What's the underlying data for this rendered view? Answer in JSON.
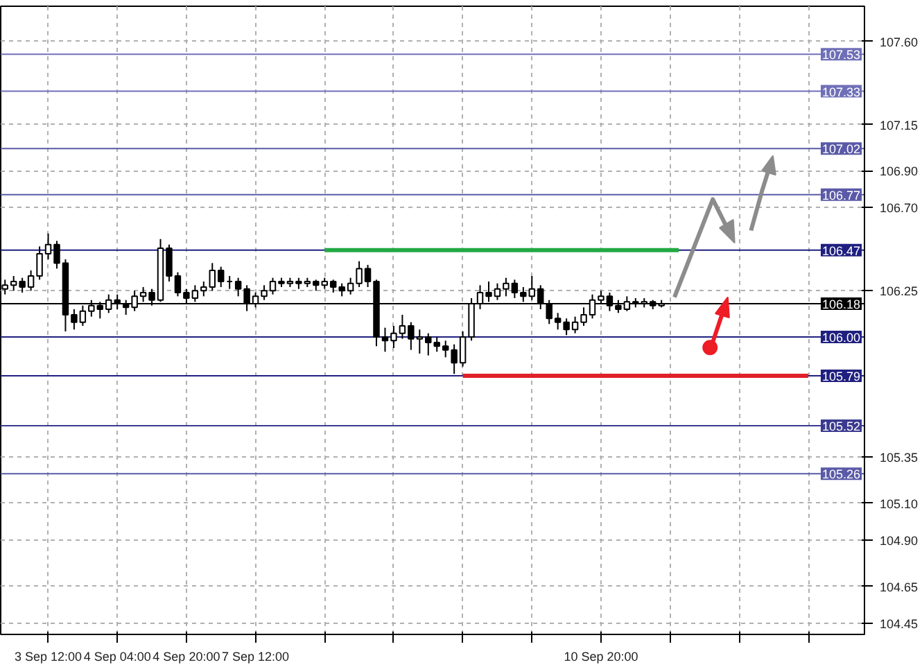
{
  "chart_data": {
    "type": "candlestick",
    "categories": [
      null,
      null,
      null,
      null,
      null,
      "3 Sep 12:00",
      null,
      null,
      null,
      null,
      null,
      null,
      null,
      "4 Sep 04:00",
      null,
      null,
      null,
      null,
      null,
      null,
      null,
      "4 Sep 20:00",
      null,
      null,
      null,
      null,
      null,
      null,
      null,
      "7 Sep 12:00",
      null,
      null,
      null,
      null,
      null,
      null,
      null,
      null,
      null,
      null,
      null,
      null,
      null,
      null,
      null,
      null,
      null,
      null,
      null,
      null,
      null,
      null,
      null,
      null,
      null,
      null,
      null,
      null,
      null,
      null,
      null,
      null,
      null,
      null,
      null,
      null,
      null,
      null,
      null,
      "10 Sep 20:00",
      null,
      null,
      null,
      null,
      null,
      null,
      null,
      null,
      null,
      null,
      null,
      null,
      null,
      null,
      null,
      null,
      null,
      null,
      null,
      null,
      null,
      null,
      null,
      null,
      null,
      null,
      null,
      null,
      null,
      null
    ],
    "ohlc": [
      [
        106.26,
        106.31,
        106.23,
        106.28
      ],
      [
        106.28,
        106.33,
        106.25,
        106.3
      ],
      [
        106.3,
        106.32,
        106.24,
        106.27
      ],
      [
        106.27,
        106.36,
        106.25,
        106.33
      ],
      [
        106.33,
        106.49,
        106.31,
        106.45
      ],
      [
        106.45,
        106.56,
        106.42,
        106.5
      ],
      [
        106.5,
        106.52,
        106.37,
        106.4
      ],
      [
        106.4,
        106.42,
        106.03,
        106.12
      ],
      [
        106.12,
        106.15,
        106.04,
        106.08
      ],
      [
        106.08,
        106.17,
        106.06,
        106.14
      ],
      [
        106.14,
        106.2,
        106.11,
        106.17
      ],
      [
        106.17,
        106.19,
        106.1,
        106.15
      ],
      [
        106.15,
        106.23,
        106.13,
        106.2
      ],
      [
        106.2,
        106.23,
        106.15,
        106.18
      ],
      [
        106.18,
        106.2,
        106.12,
        106.16
      ],
      [
        106.16,
        106.25,
        106.14,
        106.22
      ],
      [
        106.22,
        106.27,
        106.19,
        106.24
      ],
      [
        106.24,
        106.26,
        106.17,
        106.2
      ],
      [
        106.2,
        106.53,
        106.19,
        106.48
      ],
      [
        106.48,
        106.5,
        106.3,
        106.33
      ],
      [
        106.33,
        106.35,
        106.22,
        106.24
      ],
      [
        106.24,
        106.26,
        106.18,
        106.21
      ],
      [
        106.21,
        106.28,
        106.19,
        106.25
      ],
      [
        106.25,
        106.3,
        106.22,
        106.27
      ],
      [
        106.27,
        106.4,
        106.25,
        106.36
      ],
      [
        106.36,
        106.38,
        106.27,
        106.3
      ],
      [
        106.3,
        106.33,
        106.26,
        106.3
      ],
      [
        106.3,
        106.32,
        106.22,
        106.26
      ],
      [
        106.26,
        106.28,
        106.14,
        106.18
      ],
      [
        106.18,
        106.24,
        106.16,
        106.22
      ],
      [
        106.22,
        106.28,
        106.2,
        106.25
      ],
      [
        106.25,
        106.32,
        106.23,
        106.3
      ],
      [
        106.3,
        106.32,
        106.27,
        106.29
      ],
      [
        106.29,
        106.32,
        106.27,
        106.3
      ],
      [
        106.3,
        106.32,
        106.26,
        106.29
      ],
      [
        106.29,
        106.32,
        106.27,
        106.3
      ],
      [
        106.3,
        106.31,
        106.25,
        106.28
      ],
      [
        106.28,
        106.32,
        106.26,
        106.3
      ],
      [
        106.3,
        106.31,
        106.24,
        106.27
      ],
      [
        106.27,
        106.29,
        106.22,
        106.25
      ],
      [
        106.25,
        106.32,
        106.23,
        106.29
      ],
      [
        106.29,
        106.41,
        106.27,
        106.37
      ],
      [
        106.37,
        106.39,
        106.27,
        106.3
      ],
      [
        106.3,
        106.31,
        105.95,
        106.0
      ],
      [
        106.0,
        106.05,
        105.92,
        105.98
      ],
      [
        105.98,
        106.06,
        105.94,
        106.02
      ],
      [
        106.02,
        106.12,
        105.99,
        106.06
      ],
      [
        106.06,
        106.08,
        105.93,
        105.99
      ],
      [
        105.99,
        106.04,
        105.91,
        106.0
      ],
      [
        106.0,
        106.02,
        105.9,
        105.97
      ],
      [
        105.97,
        106.0,
        105.92,
        105.95
      ],
      [
        105.95,
        105.98,
        105.89,
        105.93
      ],
      [
        105.93,
        105.96,
        105.8,
        105.86
      ],
      [
        105.86,
        106.03,
        105.84,
        106.0
      ],
      [
        106.0,
        106.21,
        105.98,
        106.18
      ],
      [
        106.18,
        106.28,
        106.15,
        106.24
      ],
      [
        106.24,
        106.3,
        106.19,
        106.22
      ],
      [
        106.22,
        106.29,
        106.2,
        106.26
      ],
      [
        106.26,
        106.32,
        106.22,
        106.29
      ],
      [
        106.29,
        106.31,
        106.21,
        106.24
      ],
      [
        106.24,
        106.27,
        106.19,
        106.22
      ],
      [
        106.22,
        106.33,
        106.2,
        106.26
      ],
      [
        106.26,
        106.28,
        106.15,
        106.18
      ],
      [
        106.18,
        106.2,
        106.07,
        106.1
      ],
      [
        106.1,
        106.13,
        106.04,
        106.08
      ],
      [
        106.08,
        106.1,
        106.01,
        106.04
      ],
      [
        106.04,
        106.11,
        106.02,
        106.08
      ],
      [
        106.08,
        106.16,
        106.06,
        106.12
      ],
      [
        106.12,
        106.23,
        106.1,
        106.2
      ],
      [
        106.2,
        106.25,
        106.18,
        106.22
      ],
      [
        106.22,
        106.24,
        106.14,
        106.17
      ],
      [
        106.17,
        106.2,
        106.13,
        106.15
      ],
      [
        106.15,
        106.22,
        106.14,
        106.19
      ],
      [
        106.19,
        106.21,
        106.16,
        106.18
      ],
      [
        106.18,
        106.21,
        106.16,
        106.19
      ],
      [
        106.19,
        106.2,
        106.15,
        106.17
      ],
      [
        106.17,
        106.2,
        106.16,
        106.18
      ],
      null,
      null,
      null,
      null,
      null,
      null,
      null,
      null,
      null,
      null,
      null,
      null,
      null,
      null,
      null,
      null,
      null,
      null,
      null,
      null,
      null,
      null,
      null
    ],
    "series": [
      {
        "type": "line",
        "color": "#22aa44",
        "values": [
          null,
          null,
          null,
          null,
          null,
          null,
          null,
          null,
          null,
          null,
          null,
          null,
          null,
          null,
          null,
          null,
          null,
          null,
          null,
          null,
          null,
          null,
          null,
          null,
          null,
          null,
          null,
          null,
          null,
          null,
          null,
          null,
          null,
          null,
          null,
          null,
          null,
          106.47,
          106.47,
          106.47,
          106.47,
          106.47,
          106.47,
          106.47,
          106.47,
          106.47,
          106.47,
          106.47,
          106.47,
          106.47,
          106.47,
          106.47,
          106.47,
          106.47,
          106.47,
          106.47,
          106.47,
          106.47,
          106.47,
          106.47,
          106.47,
          106.47,
          106.47,
          106.47,
          106.47,
          106.47,
          106.47,
          106.47,
          106.47,
          106.47,
          106.47,
          106.47,
          106.47,
          106.47,
          106.47,
          106.47,
          106.47,
          106.47,
          106.47,
          null,
          null,
          null,
          null,
          null,
          null,
          null,
          null,
          null,
          null,
          null,
          null,
          null,
          null,
          null,
          null,
          null,
          null,
          null,
          null,
          null
        ]
      },
      {
        "type": "line",
        "color": "#e0202a",
        "values": [
          null,
          null,
          null,
          null,
          null,
          null,
          null,
          null,
          null,
          null,
          null,
          null,
          null,
          null,
          null,
          null,
          null,
          null,
          null,
          null,
          null,
          null,
          null,
          null,
          null,
          null,
          null,
          null,
          null,
          null,
          null,
          null,
          null,
          null,
          null,
          null,
          null,
          null,
          null,
          null,
          null,
          null,
          null,
          null,
          null,
          null,
          null,
          null,
          null,
          null,
          null,
          null,
          null,
          105.79,
          105.79,
          105.79,
          105.79,
          105.79,
          105.79,
          105.79,
          105.79,
          105.79,
          105.79,
          105.79,
          105.79,
          105.79,
          105.79,
          105.79,
          105.79,
          105.79,
          105.79,
          105.79,
          105.79,
          105.79,
          105.79,
          105.79,
          105.79,
          105.79,
          105.79,
          105.79,
          105.79,
          105.79,
          105.79,
          105.79,
          105.79,
          105.79,
          105.79,
          105.79,
          105.79,
          105.79,
          105.79,
          105.79,
          105.79,
          105.79,
          null,
          null,
          null,
          null,
          null,
          null
        ]
      }
    ],
    "ylim": [
      104.39,
      107.79
    ],
    "yticks": [
      {
        "value": 107.6,
        "label": "107.60"
      },
      {
        "value": 107.15,
        "label": "107.15"
      },
      {
        "value": 106.9,
        "label": "106.90"
      },
      {
        "value": 106.7,
        "label": "106.70"
      },
      {
        "value": 106.25,
        "label": "106.25"
      },
      {
        "value": 105.35,
        "label": "105.35"
      },
      {
        "value": 105.1,
        "label": "105.10"
      },
      {
        "value": 104.9,
        "label": "104.90"
      },
      {
        "value": 104.65,
        "label": "104.65"
      },
      {
        "value": 104.45,
        "label": "104.45"
      }
    ],
    "ref_lines": [
      {
        "axis": "y",
        "value": 107.53,
        "label": "107.53",
        "color": "#6f6fb8"
      },
      {
        "axis": "y",
        "value": 107.33,
        "label": "107.33",
        "color": "#6f6fb8"
      },
      {
        "axis": "y",
        "value": 107.02,
        "label": "107.02",
        "color": "#5a5aa8"
      },
      {
        "axis": "y",
        "value": 106.77,
        "label": "106.77",
        "color": "#5a5aa8"
      },
      {
        "axis": "y",
        "value": 106.47,
        "label": "106.47",
        "color": "#1f1f80"
      },
      {
        "axis": "y",
        "value": 106.18,
        "label": "106.18",
        "color": "#000000"
      },
      {
        "axis": "y",
        "value": 106.0,
        "label": "106.00",
        "color": "#1f1f80"
      },
      {
        "axis": "y",
        "value": 105.79,
        "label": "105.79",
        "color": "#1f1f80"
      },
      {
        "axis": "y",
        "value": 105.52,
        "label": "105.52",
        "color": "#3a3a90"
      },
      {
        "axis": "y",
        "value": 105.26,
        "label": "105.26",
        "color": "#5a5aa8"
      }
    ],
    "grid": true
  }
}
